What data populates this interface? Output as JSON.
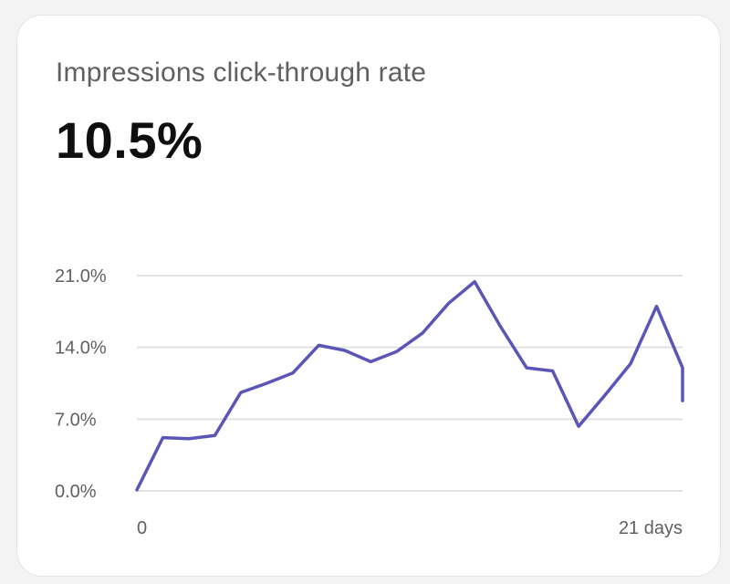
{
  "card": {
    "title": "Impressions click-through rate",
    "value": "10.5%"
  },
  "colors": {
    "line": "#5b55b8",
    "grid": "#e2e2e2",
    "text_secondary": "#606060",
    "text_primary": "#0f0f0f",
    "card_background": "#ffffff"
  },
  "chart_data": {
    "type": "line",
    "title": "",
    "xlabel": "",
    "ylabel": "",
    "ylim": [
      0,
      21
    ],
    "xlim": [
      0,
      21
    ],
    "grid": true,
    "y_ticks": [
      {
        "value": 0,
        "label": "0.0%"
      },
      {
        "value": 7,
        "label": "7.0%"
      },
      {
        "value": 14,
        "label": "14.0%"
      },
      {
        "value": 21,
        "label": "21.0%"
      }
    ],
    "x_ticks": [
      {
        "value": 0,
        "label": "0"
      },
      {
        "value": 21,
        "label": "21 days"
      }
    ],
    "series": [
      {
        "values": [
          {
            "x": 0,
            "y": 0.1
          },
          {
            "x": 1,
            "y": 5.2
          },
          {
            "x": 2,
            "y": 5.1
          },
          {
            "x": 3,
            "y": 5.4
          },
          {
            "x": 4,
            "y": 9.6
          },
          {
            "x": 5,
            "y": 10.5
          },
          {
            "x": 6,
            "y": 11.5
          },
          {
            "x": 7,
            "y": 14.2
          },
          {
            "x": 8,
            "y": 13.7
          },
          {
            "x": 9,
            "y": 12.6
          },
          {
            "x": 10,
            "y": 13.6
          },
          {
            "x": 11,
            "y": 15.4
          },
          {
            "x": 12,
            "y": 18.3
          },
          {
            "x": 13,
            "y": 20.4
          },
          {
            "x": 14,
            "y": 16.0
          },
          {
            "x": 15,
            "y": 12.0
          },
          {
            "x": 16,
            "y": 11.7
          },
          {
            "x": 17,
            "y": 6.3
          },
          {
            "x": 18,
            "y": 9.3
          },
          {
            "x": 19,
            "y": 12.4
          },
          {
            "x": 20,
            "y": 18.0
          },
          {
            "x": 21,
            "y": 12.0
          },
          {
            "x": 21,
            "y": 8.8
          }
        ]
      }
    ]
  }
}
